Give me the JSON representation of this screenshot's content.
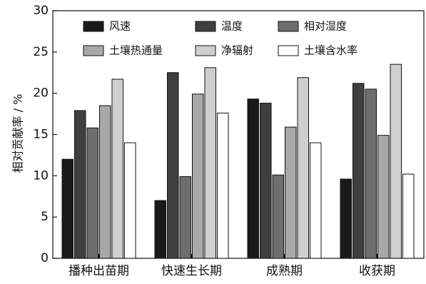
{
  "chart_data": {
    "type": "bar",
    "title": "",
    "xlabel": "",
    "ylabel": "相对贡献率 / %",
    "ylim": [
      0,
      30
    ],
    "yticks": [
      0,
      5,
      10,
      15,
      20,
      25,
      30
    ],
    "categories": [
      "播种出苗期",
      "快速生长期",
      "成熟期",
      "收获期"
    ],
    "legend_position": "top",
    "grid": false,
    "series": [
      {
        "name": "风速",
        "color": "#1a1a1a",
        "values": [
          12.0,
          7.0,
          19.3,
          9.6
        ]
      },
      {
        "name": "温度",
        "color": "#3f3f3f",
        "values": [
          17.9,
          22.5,
          18.8,
          21.2
        ]
      },
      {
        "name": "相对湿度",
        "color": "#6e6e6e",
        "values": [
          15.8,
          9.9,
          10.1,
          20.5
        ]
      },
      {
        "name": "土壤热通量",
        "color": "#a8a8a8",
        "values": [
          18.5,
          19.9,
          15.9,
          14.9
        ]
      },
      {
        "name": "净辐射",
        "color": "#cfcfcf",
        "values": [
          21.7,
          23.1,
          21.9,
          23.5
        ]
      },
      {
        "name": "土壤含水率",
        "color": "#ffffff",
        "values": [
          14.0,
          17.6,
          14.0,
          10.2
        ]
      }
    ]
  }
}
